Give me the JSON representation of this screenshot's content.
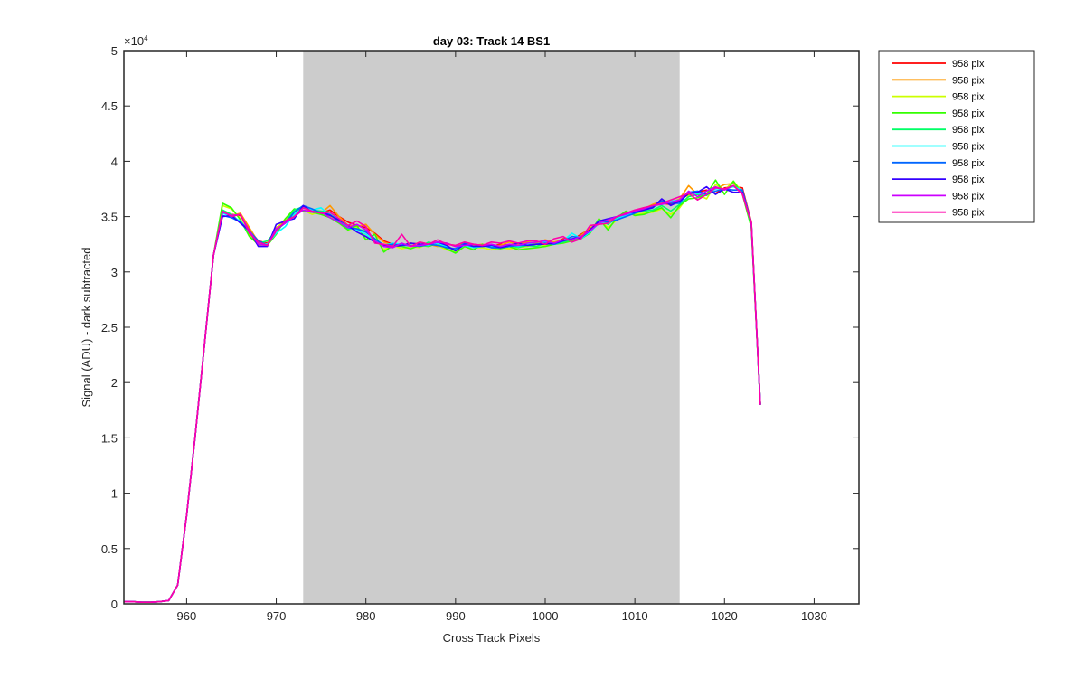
{
  "chart_data": {
    "type": "line",
    "title": "day 03: Track 14  BS1",
    "xlabel": "Cross Track Pixels",
    "ylabel": "Signal (ADU) - dark subtracted",
    "y_exponent_label": "×10",
    "y_exponent_power": "4",
    "xlim": [
      953,
      1035
    ],
    "ylim": [
      0,
      50000
    ],
    "xticks": [
      960,
      970,
      980,
      990,
      1000,
      1010,
      1020,
      1030
    ],
    "xtick_labels": [
      "960",
      "970",
      "980",
      "990",
      "1000",
      "1010",
      "1020",
      "1030"
    ],
    "yticks": [
      0,
      5000,
      10000,
      15000,
      20000,
      25000,
      30000,
      35000,
      40000,
      45000,
      50000
    ],
    "ytick_labels": [
      "0",
      "0.5",
      "1",
      "1.5",
      "2",
      "2.5",
      "3",
      "3.5",
      "4",
      "4.5",
      "5"
    ],
    "grid": false,
    "legend_position": "outside-top-right",
    "shaded_region": {
      "x": [
        973,
        1015
      ],
      "color": "#cccccc"
    },
    "x": [
      953,
      954,
      955,
      956,
      957,
      958,
      959,
      960,
      961,
      962,
      963,
      964,
      965,
      966,
      967,
      968,
      969,
      970,
      971,
      972,
      973,
      974,
      975,
      976,
      977,
      978,
      979,
      980,
      981,
      982,
      983,
      984,
      985,
      986,
      987,
      988,
      989,
      990,
      991,
      992,
      993,
      994,
      995,
      996,
      997,
      998,
      999,
      1000,
      1001,
      1002,
      1003,
      1004,
      1005,
      1006,
      1007,
      1008,
      1009,
      1010,
      1011,
      1012,
      1013,
      1014,
      1015,
      1016,
      1017,
      1018,
      1019,
      1020,
      1021,
      1022,
      1023,
      1024
    ],
    "series": [
      {
        "name": "958 pix",
        "color": "#ff0000",
        "values": [
          200,
          200,
          150,
          150,
          200,
          300,
          1700,
          8000,
          15500,
          23500,
          31500,
          35500,
          35200,
          35100,
          33800,
          32800,
          32600,
          33800,
          34500,
          35200,
          35800,
          35500,
          35300,
          35600,
          35000,
          34500,
          34200,
          34000,
          33500,
          32800,
          32500,
          32400,
          32600,
          32500,
          32400,
          32700,
          32600,
          32300,
          32500,
          32400,
          32400,
          32300,
          32500,
          32400,
          32600,
          32500,
          32700,
          32800,
          32600,
          33000,
          32900,
          33400,
          33900,
          34400,
          34700,
          34900,
          35200,
          35500,
          35800,
          35900,
          36200,
          36100,
          36500,
          37000,
          37200,
          37400,
          37100,
          37600,
          37700,
          37600,
          34500,
          18000
        ]
      },
      {
        "name": "958 pix",
        "color": "#ff9900",
        "values": [
          200,
          200,
          150,
          150,
          200,
          300,
          1700,
          8000,
          15500,
          23500,
          31500,
          35300,
          35100,
          35300,
          34000,
          32700,
          32500,
          34000,
          34600,
          35400,
          35800,
          35400,
          35300,
          36000,
          35000,
          34200,
          34100,
          34300,
          33400,
          32700,
          32400,
          32500,
          32300,
          32700,
          32500,
          32300,
          32500,
          32400,
          32600,
          32400,
          32500,
          32300,
          32400,
          32700,
          32500,
          32700,
          32600,
          32900,
          32700,
          32900,
          32800,
          33300,
          34000,
          34300,
          34600,
          35000,
          35300,
          35400,
          35700,
          36100,
          36400,
          36300,
          36600,
          37800,
          37000,
          37100,
          37500,
          37900,
          38000,
          37300,
          34300,
          18000
        ]
      },
      {
        "name": "958 pix",
        "color": "#ccff00",
        "values": [
          200,
          200,
          150,
          150,
          200,
          300,
          1700,
          8000,
          15500,
          23500,
          31500,
          36000,
          35700,
          34800,
          33300,
          32400,
          32500,
          33900,
          34800,
          35500,
          35600,
          35200,
          35500,
          35000,
          34600,
          33800,
          34000,
          33200,
          33000,
          32000,
          32400,
          32100,
          32300,
          32200,
          32600,
          32400,
          32000,
          31800,
          32400,
          32200,
          32200,
          32000,
          32200,
          32100,
          32200,
          32300,
          32500,
          32400,
          32600,
          32700,
          32900,
          33100,
          33600,
          34800,
          34000,
          34700,
          35400,
          35200,
          35300,
          35400,
          35700,
          35200,
          35800,
          36900,
          37000,
          36600,
          37900,
          37400,
          38200,
          37200,
          34000,
          18000
        ]
      },
      {
        "name": "958 pix",
        "color": "#33ff00",
        "values": [
          200,
          200,
          150,
          150,
          200,
          300,
          1700,
          8000,
          15500,
          23500,
          31500,
          36200,
          35800,
          34700,
          33200,
          32500,
          32400,
          33400,
          34800,
          35700,
          35500,
          35400,
          35200,
          34900,
          34400,
          33800,
          34200,
          32900,
          33400,
          31800,
          32400,
          32300,
          32100,
          32400,
          32300,
          32600,
          32100,
          31700,
          32300,
          32000,
          32500,
          32200,
          32100,
          32300,
          32000,
          32100,
          32200,
          32300,
          32500,
          32600,
          32800,
          33000,
          33500,
          34800,
          33800,
          34900,
          35500,
          35100,
          35200,
          35500,
          35800,
          34900,
          36000,
          36600,
          36700,
          37000,
          38300,
          37000,
          38200,
          37000,
          34000,
          18000
        ]
      },
      {
        "name": "958 pix",
        "color": "#00ff66",
        "values": [
          200,
          200,
          150,
          150,
          200,
          300,
          1700,
          8000,
          15500,
          23500,
          31500,
          35600,
          35200,
          34500,
          33500,
          32600,
          32800,
          33700,
          34500,
          35600,
          35900,
          35600,
          35500,
          35400,
          34700,
          33900,
          33900,
          33700,
          33000,
          32300,
          32500,
          32500,
          32400,
          32300,
          32700,
          32400,
          32300,
          31900,
          32500,
          32300,
          32300,
          32400,
          32200,
          32400,
          32200,
          32400,
          32300,
          32600,
          32500,
          32700,
          32900,
          33200,
          33700,
          34700,
          34300,
          34900,
          35200,
          35300,
          35500,
          35600,
          36000,
          35500,
          36100,
          36800,
          37000,
          36900,
          37600,
          37400,
          37800,
          37300,
          34200,
          18000
        ]
      },
      {
        "name": "958 pix",
        "color": "#00ffff",
        "values": [
          200,
          200,
          150,
          150,
          200,
          300,
          1700,
          8000,
          15500,
          23500,
          31500,
          35300,
          35000,
          34600,
          33600,
          32700,
          32500,
          33500,
          34100,
          35200,
          35800,
          35600,
          35800,
          35100,
          34800,
          34000,
          33800,
          33400,
          32800,
          32400,
          32600,
          32500,
          32300,
          32400,
          32400,
          32600,
          32300,
          32000,
          32400,
          32200,
          32300,
          32300,
          32300,
          32400,
          32300,
          32500,
          32500,
          32700,
          32500,
          32800,
          33500,
          33000,
          33600,
          34400,
          34400,
          34800,
          35100,
          35400,
          35600,
          35800,
          36300,
          36400,
          36500,
          37100,
          37100,
          37000,
          37500,
          37500,
          37700,
          37400,
          34400,
          18000
        ]
      },
      {
        "name": "958 pix",
        "color": "#0066ff",
        "values": [
          200,
          200,
          150,
          150,
          200,
          300,
          1700,
          8000,
          15500,
          23500,
          31500,
          35100,
          34900,
          34500,
          33700,
          32800,
          32400,
          33800,
          34400,
          35400,
          36000,
          35700,
          35300,
          35200,
          34500,
          34000,
          33900,
          33600,
          33000,
          32400,
          32500,
          32400,
          32400,
          32300,
          32500,
          32400,
          32200,
          32100,
          32600,
          32300,
          32400,
          32200,
          32200,
          32300,
          32400,
          32400,
          32500,
          32600,
          32500,
          32800,
          33200,
          33100,
          33700,
          34600,
          34500,
          34700,
          35000,
          35300,
          35600,
          35900,
          36400,
          36200,
          36200,
          37200,
          37300,
          37000,
          37300,
          37500,
          37400,
          37400,
          34300,
          18000
        ]
      },
      {
        "name": "958 pix",
        "color": "#3300ff",
        "values": [
          200,
          200,
          150,
          150,
          200,
          300,
          1700,
          8000,
          15500,
          23500,
          31500,
          35000,
          35100,
          34400,
          33700,
          32300,
          32300,
          34300,
          34600,
          34800,
          36000,
          35400,
          35400,
          35100,
          34700,
          34200,
          33600,
          33200,
          32700,
          32400,
          32300,
          32400,
          32600,
          32500,
          32500,
          32700,
          32400,
          31900,
          32500,
          32300,
          32300,
          32400,
          32200,
          32400,
          32600,
          32400,
          32500,
          32500,
          32600,
          32800,
          33000,
          33100,
          33800,
          34600,
          34800,
          35000,
          35300,
          35400,
          35600,
          35800,
          36600,
          36000,
          36400,
          37100,
          37200,
          37700,
          37000,
          37500,
          37200,
          37200,
          34400,
          18000
        ]
      },
      {
        "name": "958 pix",
        "color": "#cc00ff",
        "values": [
          200,
          200,
          150,
          150,
          200,
          300,
          1700,
          8000,
          15500,
          23500,
          31500,
          35400,
          35100,
          35200,
          33700,
          32500,
          32400,
          33900,
          34400,
          35000,
          35600,
          35400,
          35400,
          34900,
          34500,
          34000,
          34300,
          33800,
          32800,
          32300,
          32200,
          32600,
          32300,
          32400,
          32500,
          32700,
          32600,
          32300,
          32400,
          32500,
          32400,
          32500,
          32300,
          32500,
          32400,
          32600,
          32700,
          32800,
          32600,
          32900,
          32900,
          33200,
          33700,
          34400,
          34700,
          35000,
          35200,
          35500,
          35700,
          36000,
          36100,
          36300,
          36500,
          37300,
          36800,
          37300,
          37700,
          37400,
          37800,
          37100,
          34400,
          18000
        ]
      },
      {
        "name": "958 pix",
        "color": "#ff00aa",
        "values": [
          200,
          200,
          150,
          150,
          200,
          300,
          1700,
          8000,
          15500,
          23500,
          31500,
          35500,
          35000,
          35200,
          33500,
          32700,
          32400,
          33700,
          34600,
          35000,
          35800,
          35500,
          35300,
          35400,
          34800,
          34200,
          34600,
          34100,
          32600,
          32500,
          32300,
          33400,
          32300,
          32700,
          32500,
          32900,
          32500,
          32400,
          32700,
          32500,
          32400,
          32700,
          32600,
          32800,
          32600,
          32800,
          32800,
          32500,
          33000,
          33200,
          32700,
          33000,
          34200,
          34300,
          34400,
          35000,
          35300,
          35600,
          35800,
          36000,
          36200,
          36500,
          36800,
          37100,
          36500,
          37000,
          37600,
          37500,
          37800,
          37000,
          34400,
          18000
        ]
      }
    ]
  }
}
